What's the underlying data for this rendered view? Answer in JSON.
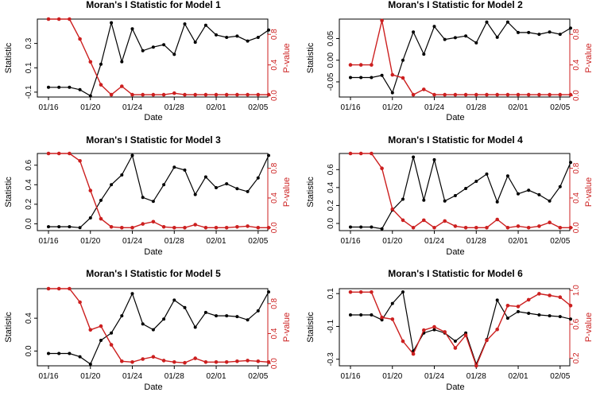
{
  "xaxis": {
    "label": "Date",
    "ticks": [
      {
        "date": "01/16",
        "pos": 0
      },
      {
        "date": "01/20",
        "pos": 4
      },
      {
        "date": "01/24",
        "pos": 8
      },
      {
        "date": "01/28",
        "pos": 12
      },
      {
        "date": "02/01",
        "pos": 16
      },
      {
        "date": "02/05",
        "pos": 20
      }
    ],
    "dates": [
      "01/16",
      "01/17",
      "01/18",
      "01/19",
      "01/20",
      "01/21",
      "01/22",
      "01/23",
      "01/24",
      "01/25",
      "01/26",
      "01/27",
      "01/28",
      "01/29",
      "01/30",
      "01/31",
      "02/01",
      "02/02",
      "02/03",
      "02/04",
      "02/05",
      "02/06"
    ]
  },
  "colors": {
    "statistic": "#000000",
    "pvalue": "#cc1f1f"
  },
  "chart_data": [
    {
      "type": "line",
      "title": "Moran's I Statistic for Model 1",
      "xlabel": "Date",
      "ylabel": "Statistic",
      "y2label": "P-value",
      "ylim": [
        -0.14,
        0.5
      ],
      "y2lim": [
        -0.02,
        1.0
      ],
      "yticks": [
        -0.1,
        0.1,
        0.3
      ],
      "yticklabels": [
        "-0.1",
        "0.1",
        "0.3"
      ],
      "y2ticks": [
        0.0,
        0.4,
        0.8
      ],
      "y2ticklabels": [
        "0.0",
        "0.4",
        "0.8"
      ],
      "series": [
        {
          "axis": "left",
          "values": [
            -0.06,
            -0.06,
            -0.06,
            -0.08,
            -0.13,
            0.13,
            0.47,
            0.15,
            0.42,
            0.24,
            0.27,
            0.29,
            0.21,
            0.46,
            0.31,
            0.45,
            0.37,
            0.35,
            0.36,
            0.32,
            0.35,
            0.41
          ]
        },
        {
          "axis": "right",
          "values": [
            1.0,
            1.0,
            1.0,
            0.74,
            0.44,
            0.14,
            0.01,
            0.12,
            0.01,
            0.01,
            0.01,
            0.01,
            0.03,
            0.01,
            0.01,
            0.01,
            0.01,
            0.01,
            0.01,
            0.01,
            0.01,
            0.01
          ]
        }
      ]
    },
    {
      "type": "line",
      "title": "Moran's I Statistic for Model 2",
      "xlabel": "Date",
      "ylabel": "Statistic",
      "y2label": "P-value",
      "ylim": [
        -0.085,
        0.095
      ],
      "y2lim": [
        -0.02,
        1.0
      ],
      "yticks": [
        -0.05,
        0.0,
        0.05
      ],
      "yticklabels": [
        "-0.05",
        "0.00",
        "0.05"
      ],
      "y2ticks": [
        0.0,
        0.4,
        0.8
      ],
      "y2ticklabels": [
        "0.0",
        "0.4",
        "0.8"
      ],
      "series": [
        {
          "axis": "left",
          "values": [
            -0.04,
            -0.04,
            -0.04,
            -0.035,
            -0.075,
            0.0,
            0.065,
            0.014,
            0.078,
            0.048,
            0.052,
            0.056,
            0.04,
            0.088,
            0.053,
            0.088,
            0.064,
            0.064,
            0.06,
            0.065,
            0.06,
            0.074
          ]
        },
        {
          "axis": "right",
          "values": [
            0.4,
            0.4,
            0.4,
            0.98,
            0.27,
            0.23,
            0.01,
            0.08,
            0.01,
            0.01,
            0.01,
            0.01,
            0.01,
            0.01,
            0.01,
            0.01,
            0.01,
            0.01,
            0.01,
            0.01,
            0.01,
            0.01
          ]
        }
      ]
    },
    {
      "type": "line",
      "title": "Moran's I Statistic for Model 3",
      "xlabel": "Date",
      "ylabel": "Statistic",
      "y2label": "P-value",
      "ylim": [
        -0.07,
        0.72
      ],
      "y2lim": [
        -0.04,
        1.0
      ],
      "yticks": [
        0.0,
        0.2,
        0.4,
        0.6
      ],
      "yticklabels": [
        "0.0",
        "0.2",
        "0.4",
        "0.6"
      ],
      "y2ticks": [
        0.0,
        0.4,
        0.8
      ],
      "y2ticklabels": [
        "0.0",
        "0.4",
        "0.8"
      ],
      "series": [
        {
          "axis": "left",
          "values": [
            -0.03,
            -0.03,
            -0.03,
            -0.04,
            0.06,
            0.24,
            0.4,
            0.5,
            0.7,
            0.27,
            0.23,
            0.4,
            0.58,
            0.55,
            0.3,
            0.48,
            0.37,
            0.41,
            0.36,
            0.33,
            0.47,
            0.7
          ]
        },
        {
          "axis": "right",
          "values": [
            1.0,
            1.0,
            1.0,
            0.9,
            0.5,
            0.12,
            0.01,
            0.0,
            0.0,
            0.05,
            0.08,
            0.01,
            0.0,
            0.0,
            0.04,
            0.0,
            0.0,
            0.0,
            0.01,
            0.02,
            0.0,
            0.0
          ]
        }
      ]
    },
    {
      "type": "line",
      "title": "Moran's I Statistic for Model 4",
      "xlabel": "Date",
      "ylabel": "Statistic",
      "y2label": "P-value",
      "ylim": [
        -0.08,
        0.78
      ],
      "y2lim": [
        -0.04,
        1.0
      ],
      "yticks": [
        0.0,
        0.2,
        0.4,
        0.6
      ],
      "yticklabels": [
        "0.0",
        "0.2",
        "0.4",
        "0.6"
      ],
      "y2ticks": [
        0.0,
        0.4,
        0.8
      ],
      "y2ticklabels": [
        "0.0",
        "0.4",
        "0.8"
      ],
      "series": [
        {
          "axis": "left",
          "values": [
            -0.04,
            -0.04,
            -0.04,
            -0.06,
            0.15,
            0.27,
            0.74,
            0.26,
            0.71,
            0.25,
            0.31,
            0.39,
            0.47,
            0.55,
            0.24,
            0.53,
            0.33,
            0.37,
            0.32,
            0.25,
            0.41,
            0.68
          ]
        },
        {
          "axis": "right",
          "values": [
            1.0,
            1.0,
            1.0,
            0.8,
            0.25,
            0.1,
            0.0,
            0.1,
            0.0,
            0.09,
            0.02,
            0.0,
            0.0,
            0.0,
            0.11,
            0.0,
            0.02,
            0.0,
            0.02,
            0.07,
            0.0,
            0.0
          ]
        }
      ]
    },
    {
      "type": "line",
      "title": "Moran's I Statistic for Model 5",
      "xlabel": "Date",
      "ylabel": "Statistic",
      "y2label": "P-value",
      "ylim": [
        -0.18,
        0.76
      ],
      "y2lim": [
        -0.03,
        1.0
      ],
      "yticks": [
        0.0,
        0.4
      ],
      "yticklabels": [
        "0.0",
        "0.4"
      ],
      "y2ticks": [
        0.0,
        0.4,
        0.8
      ],
      "y2ticklabels": [
        "0.0",
        "0.4",
        "0.8"
      ],
      "series": [
        {
          "axis": "left",
          "values": [
            -0.03,
            -0.03,
            -0.03,
            -0.07,
            -0.16,
            0.13,
            0.22,
            0.43,
            0.7,
            0.33,
            0.26,
            0.39,
            0.62,
            0.53,
            0.29,
            0.47,
            0.43,
            0.43,
            0.42,
            0.38,
            0.49,
            0.72
          ]
        },
        {
          "axis": "right",
          "values": [
            1.0,
            1.0,
            1.0,
            0.82,
            0.45,
            0.5,
            0.25,
            0.03,
            0.02,
            0.06,
            0.09,
            0.04,
            0.02,
            0.01,
            0.07,
            0.02,
            0.02,
            0.02,
            0.03,
            0.04,
            0.03,
            0.02
          ]
        }
      ]
    },
    {
      "type": "line",
      "title": "Moran's I Statistic for Model 6",
      "xlabel": "Date",
      "ylabel": "Statistic",
      "y2label": "P-value",
      "ylim": [
        -0.34,
        0.13
      ],
      "y2lim": [
        0.11,
        1.02
      ],
      "yticks": [
        -0.3,
        -0.1,
        0.1
      ],
      "yticklabels": [
        "-0.3",
        "-0.1",
        "0.1"
      ],
      "y2ticks": [
        0.2,
        0.6,
        1.0
      ],
      "y2ticklabels": [
        "0.2",
        "0.6",
        "1.0"
      ],
      "series": [
        {
          "axis": "left",
          "values": [
            -0.03,
            -0.03,
            -0.03,
            -0.06,
            0.04,
            0.11,
            -0.25,
            -0.14,
            -0.12,
            -0.14,
            -0.19,
            -0.14,
            -0.33,
            -0.18,
            0.06,
            -0.05,
            -0.01,
            -0.02,
            -0.03,
            -0.035,
            -0.04,
            -0.055
          ]
        },
        {
          "axis": "right",
          "values": [
            0.98,
            0.98,
            0.98,
            0.68,
            0.66,
            0.4,
            0.25,
            0.53,
            0.57,
            0.51,
            0.32,
            0.47,
            0.11,
            0.41,
            0.54,
            0.82,
            0.81,
            0.89,
            0.96,
            0.94,
            0.92,
            0.82
          ]
        }
      ]
    }
  ]
}
